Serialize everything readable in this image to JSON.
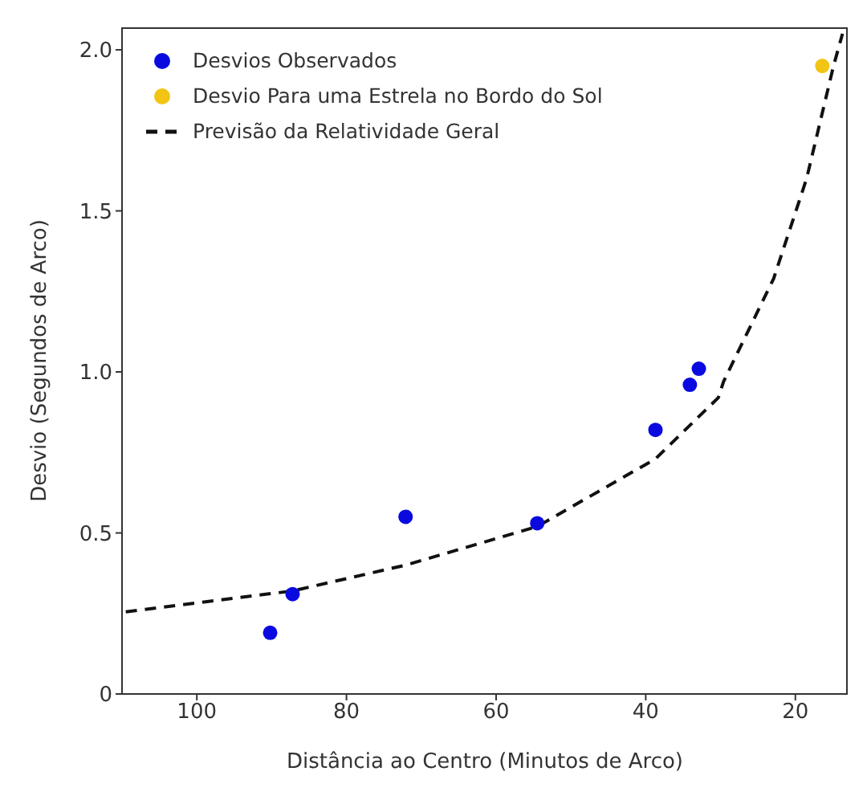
{
  "chart_data": {
    "type": "scatter",
    "xlabel": "Distância ao Centro (Minutos de Arco)",
    "ylabel": "Desvio (Segundos de Arco)",
    "xlim": [
      110,
      13
    ],
    "xticks": [
      100,
      80,
      60,
      40,
      20
    ],
    "ylim": [
      0,
      2.07
    ],
    "yticks": [
      0,
      {
        "value": 0.5,
        "label": "0.5"
      },
      {
        "value": 1,
        "label": "1.0"
      },
      {
        "value": 1.5,
        "label": "1.5"
      },
      {
        "value": 2,
        "label": "2.0"
      }
    ],
    "legend": "top left",
    "marker": "circle",
    "series": [
      {
        "name": "Desvios Observados",
        "color": "#0a0ae0",
        "x": [
          90.2,
          87.2,
          72.1,
          54.5,
          38.7,
          34.1,
          32.9
        ],
        "values": [
          0.19,
          0.31,
          0.55,
          0.53,
          0.82,
          0.96,
          1.01
        ]
      },
      {
        "name": "Desvio Para uma Estrela no Bordo do Sol",
        "color": "#f2c414",
        "x": [
          16.4
        ],
        "values": [
          1.95
        ]
      },
      {
        "name": "Previsão da Relatividade Geral",
        "type": "line",
        "line_style": "dashed",
        "marker": "none",
        "color": "#111111",
        "x": [
          109.5,
          87.2,
          72.1,
          54.5,
          38.7,
          30.3,
          29.6,
          22.9,
          18.5,
          14.9,
          13.7
        ],
        "values": [
          0.255,
          0.32,
          0.4,
          0.52,
          0.73,
          0.92,
          0.97,
          1.29,
          1.6,
          1.95,
          2.05
        ]
      }
    ]
  }
}
